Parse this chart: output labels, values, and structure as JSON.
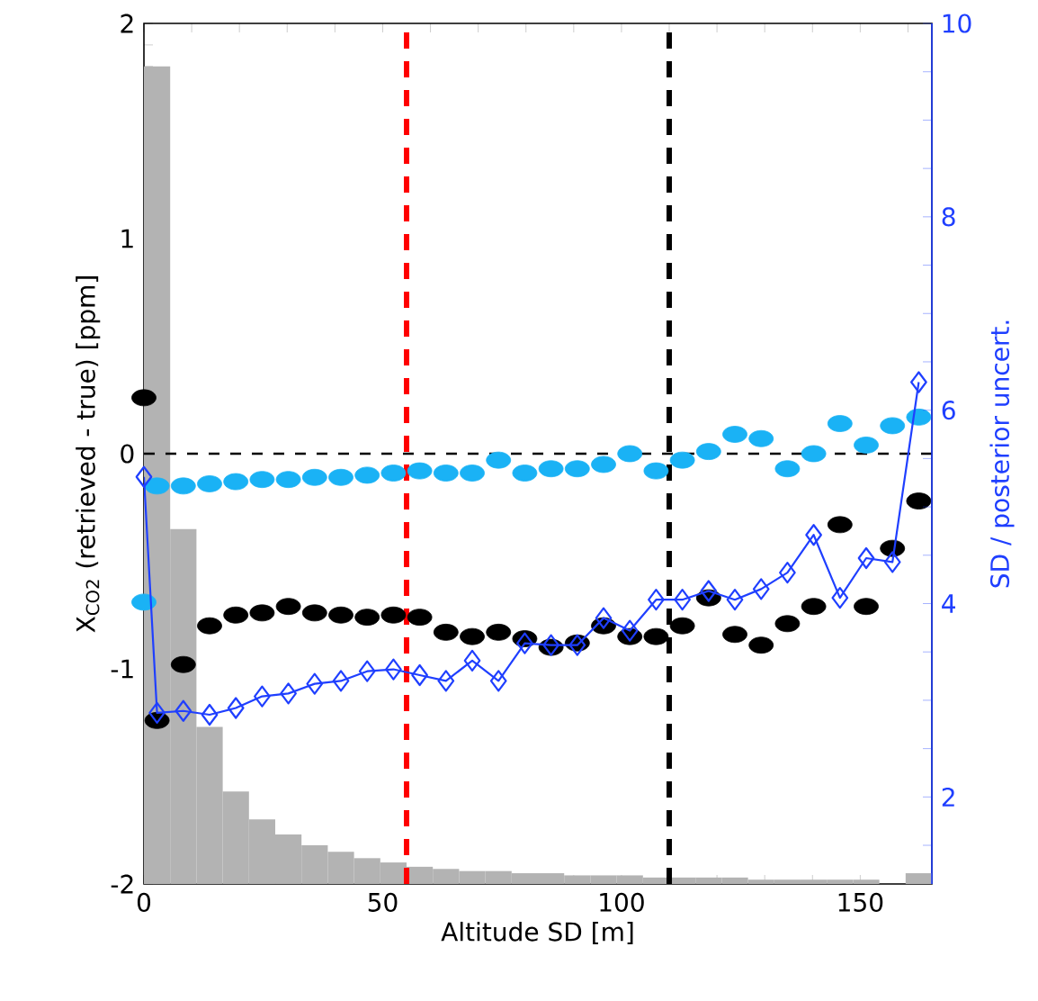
{
  "chart_data": {
    "type": "scatter",
    "xlabel": "Altitude SD [m]",
    "ylabel": "X$_{CO2}$ (retrieved - true) [ppm]",
    "y2label": "SD / posterior uncert.",
    "xlim": [
      0,
      165
    ],
    "ylim": [
      -2,
      2
    ],
    "y2lim": [
      1.1,
      10
    ],
    "xticks": [
      0,
      {
        "value": 10,
        "label": null
      },
      {
        "value": 20,
        "label": null
      },
      {
        "value": 30,
        "label": null
      },
      {
        "value": 40,
        "label": null
      },
      50,
      {
        "value": 60,
        "label": null
      },
      {
        "value": 70,
        "label": null
      },
      {
        "value": 80,
        "label": null
      },
      {
        "value": 90,
        "label": null
      },
      100,
      {
        "value": 110,
        "label": null
      },
      {
        "value": 120,
        "label": null
      },
      {
        "value": 130,
        "label": null
      },
      {
        "value": 140,
        "label": null
      },
      150,
      {
        "value": 160,
        "label": null
      }
    ],
    "yticks": [
      -2,
      {
        "value": -1.9,
        "label": null
      },
      {
        "value": -1.8,
        "label": null
      },
      {
        "value": -1.7,
        "label": null
      },
      {
        "value": -1.6,
        "label": null
      },
      {
        "value": -1.5,
        "label": null
      },
      {
        "value": -1.4,
        "label": null
      },
      {
        "value": -1.3,
        "label": null
      },
      {
        "value": -1.2,
        "label": null
      },
      {
        "value": -1.1,
        "label": null
      },
      -1,
      {
        "value": -0.9,
        "label": null
      },
      {
        "value": -0.8,
        "label": null
      },
      {
        "value": -0.7,
        "label": null
      },
      {
        "value": -0.6,
        "label": null
      },
      {
        "value": -0.5,
        "label": null
      },
      {
        "value": -0.4,
        "label": null
      },
      {
        "value": -0.3,
        "label": null
      },
      {
        "value": -0.2,
        "label": null
      },
      {
        "value": -0.1,
        "label": null
      },
      0,
      {
        "value": 0.1,
        "label": null
      },
      {
        "value": 0.2,
        "label": null
      },
      {
        "value": 0.3,
        "label": null
      },
      {
        "value": 0.4,
        "label": null
      },
      {
        "value": 0.5,
        "label": null
      },
      {
        "value": 0.6,
        "label": null
      },
      {
        "value": 0.7,
        "label": null
      },
      {
        "value": 0.8,
        "label": null
      },
      {
        "value": 0.9,
        "label": null
      },
      1,
      {
        "value": 1.1,
        "label": null
      },
      {
        "value": 1.2,
        "label": null
      },
      {
        "value": 1.3,
        "label": null
      },
      {
        "value": 1.4,
        "label": null
      },
      {
        "value": 1.5,
        "label": null
      },
      {
        "value": 1.6,
        "label": null
      },
      {
        "value": 1.7,
        "label": null
      },
      {
        "value": 1.8,
        "label": null
      },
      {
        "value": 1.9,
        "label": null
      },
      2
    ],
    "y2ticks": [
      {
        "value": 1.5,
        "label": null
      },
      2,
      {
        "value": 2.5,
        "label": null
      },
      {
        "value": 3,
        "label": null
      },
      {
        "value": 3.5,
        "label": null
      },
      4,
      {
        "value": 4.5,
        "label": null
      },
      {
        "value": 5,
        "label": null
      },
      {
        "value": 5.5,
        "label": null
      },
      6,
      {
        "value": 6.5,
        "label": null
      },
      {
        "value": 7,
        "label": null
      },
      {
        "value": 7.5,
        "label": null
      },
      8,
      {
        "value": 8.5,
        "label": null
      },
      {
        "value": 9,
        "label": null
      },
      {
        "value": 9.5,
        "label": null
      },
      10
    ],
    "ref_lines": [
      {
        "axis": "y",
        "value": 0,
        "color": "#000000",
        "line_style": "dashed"
      },
      {
        "axis": "x",
        "value": 55,
        "color": "#ff0000",
        "line_style": "dashed"
      },
      {
        "axis": "x",
        "value": 110,
        "color": "#000000",
        "line_style": "dashed"
      }
    ],
    "series": [
      {
        "type": "histogram",
        "color": "#b3b3b3",
        "bins": [
          0,
          5.5,
          11,
          16.5,
          22,
          27.5,
          33,
          38.5,
          44,
          49.5,
          55,
          60.5,
          66,
          71.5,
          77,
          82.5,
          88,
          93.5,
          99,
          104.5,
          110,
          115.5,
          121,
          126.5,
          132,
          137.5,
          143,
          148.5,
          154,
          159.5,
          165
        ],
        "base": [
          -2,
          -2,
          -2,
          -2,
          -2,
          -2,
          -2,
          -2,
          -2,
          -2,
          -2,
          -2,
          -2,
          -2,
          -2,
          -2,
          -2,
          -2,
          -2,
          -2,
          -2,
          -2,
          -2,
          -2,
          -2,
          -2,
          -2,
          -2,
          null,
          -2
        ],
        "values": [
          3.8,
          1.65,
          0.73,
          0.43,
          0.3,
          0.23,
          0.18,
          0.15,
          0.12,
          0.1,
          0.08,
          0.07,
          0.06,
          0.06,
          0.05,
          0.05,
          0.04,
          0.04,
          0.04,
          0.03,
          0.03,
          0.03,
          0.03,
          0.02,
          0.02,
          0.02,
          0.02,
          0.02,
          null,
          0.05
        ]
      },
      {
        "color": "#000000",
        "marker": "circle",
        "x": [
          0,
          2.75,
          8.25,
          13.75,
          19.25,
          24.75,
          30.25,
          35.75,
          41.25,
          46.75,
          52.25,
          57.75,
          63.25,
          68.75,
          74.25,
          79.75,
          85.25,
          90.75,
          96.25,
          101.75,
          107.25,
          112.75,
          118.25,
          123.75,
          129.25,
          134.75,
          140.25,
          145.75,
          151.25,
          156.75,
          162.25
        ],
        "values": [
          0.26,
          -1.24,
          -0.98,
          -0.8,
          -0.75,
          -0.74,
          -0.71,
          -0.74,
          -0.75,
          -0.76,
          -0.75,
          -0.76,
          -0.83,
          -0.85,
          -0.83,
          -0.86,
          -0.9,
          -0.88,
          -0.8,
          -0.85,
          -0.85,
          -0.8,
          -0.67,
          -0.84,
          -0.89,
          -0.79,
          -0.71,
          -0.33,
          -0.71,
          -0.44,
          -0.22
        ]
      },
      {
        "color": "#1ab2f5",
        "marker": "circle",
        "x": [
          0,
          2.75,
          8.25,
          13.75,
          19.25,
          24.75,
          30.25,
          35.75,
          41.25,
          46.75,
          52.25,
          57.75,
          63.25,
          68.75,
          74.25,
          79.75,
          85.25,
          90.75,
          96.25,
          101.75,
          107.25,
          112.75,
          118.25,
          123.75,
          129.25,
          134.75,
          140.25,
          145.75,
          151.25,
          156.75,
          162.25
        ],
        "values": [
          -0.69,
          -0.15,
          -0.15,
          -0.14,
          -0.13,
          -0.12,
          -0.12,
          -0.11,
          -0.11,
          -0.1,
          -0.09,
          -0.08,
          -0.09,
          -0.09,
          -0.03,
          -0.09,
          -0.07,
          -0.07,
          -0.05,
          0.0,
          -0.08,
          -0.03,
          0.01,
          0.09,
          0.07,
          -0.07,
          0.0,
          0.14,
          0.04,
          0.13,
          0.17
        ]
      },
      {
        "type": "line",
        "axis": "y2",
        "color": "#1f3fff",
        "marker": "diamond",
        "x": [
          0,
          2.75,
          8.25,
          13.75,
          19.25,
          24.75,
          30.25,
          35.75,
          41.25,
          46.75,
          52.25,
          57.75,
          63.25,
          68.75,
          74.25,
          79.75,
          85.25,
          90.75,
          96.25,
          101.75,
          107.25,
          112.75,
          118.25,
          123.75,
          129.25,
          134.75,
          140.25,
          145.75,
          151.25,
          156.75,
          162.25
        ],
        "values": [
          5.31,
          2.87,
          2.89,
          2.85,
          2.92,
          3.04,
          3.07,
          3.17,
          3.2,
          3.3,
          3.32,
          3.26,
          3.2,
          3.41,
          3.2,
          3.59,
          3.57,
          3.57,
          3.85,
          3.72,
          4.04,
          4.04,
          4.13,
          4.04,
          4.15,
          4.32,
          4.71,
          4.06,
          4.47,
          4.43,
          6.29
        ]
      }
    ]
  }
}
